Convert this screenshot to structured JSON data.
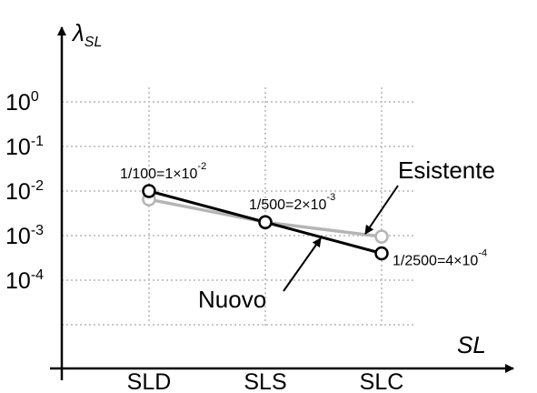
{
  "chart_data": {
    "type": "line",
    "categories": [
      "SLD",
      "SLS",
      "SLC"
    ],
    "yscale": "log",
    "ylim": [
      1e-05,
      10
    ],
    "y_ticks": [
      {
        "value": 1,
        "base": "10",
        "exp": "0"
      },
      {
        "value": 0.1,
        "base": "10",
        "exp": "-1"
      },
      {
        "value": 0.01,
        "base": "10",
        "exp": "-2"
      },
      {
        "value": 0.001,
        "base": "10",
        "exp": "-3"
      },
      {
        "value": 0.0001,
        "base": "10",
        "exp": "-4"
      }
    ],
    "ylabel": {
      "main": "λ",
      "sub": "SL"
    },
    "xlabel": "SL",
    "grid": true,
    "series": [
      {
        "name": "Esistente",
        "values": [
          0.0065,
          0.002,
          0.00095
        ],
        "color": "#b5b5b5"
      },
      {
        "name": "Nuovo",
        "values": [
          0.01,
          0.002,
          0.0004
        ],
        "color": "#000000"
      }
    ],
    "annotations": [
      {
        "category": "SLD",
        "value": 0.01,
        "pre": "1/100=1×10",
        "exp": "-2"
      },
      {
        "category": "SLS",
        "value": 0.002,
        "pre": "1/500=2×10",
        "exp": "-3"
      },
      {
        "category": "SLC",
        "value": 0.0004,
        "pre": "1/2500=4×10",
        "exp": "-4"
      }
    ]
  }
}
